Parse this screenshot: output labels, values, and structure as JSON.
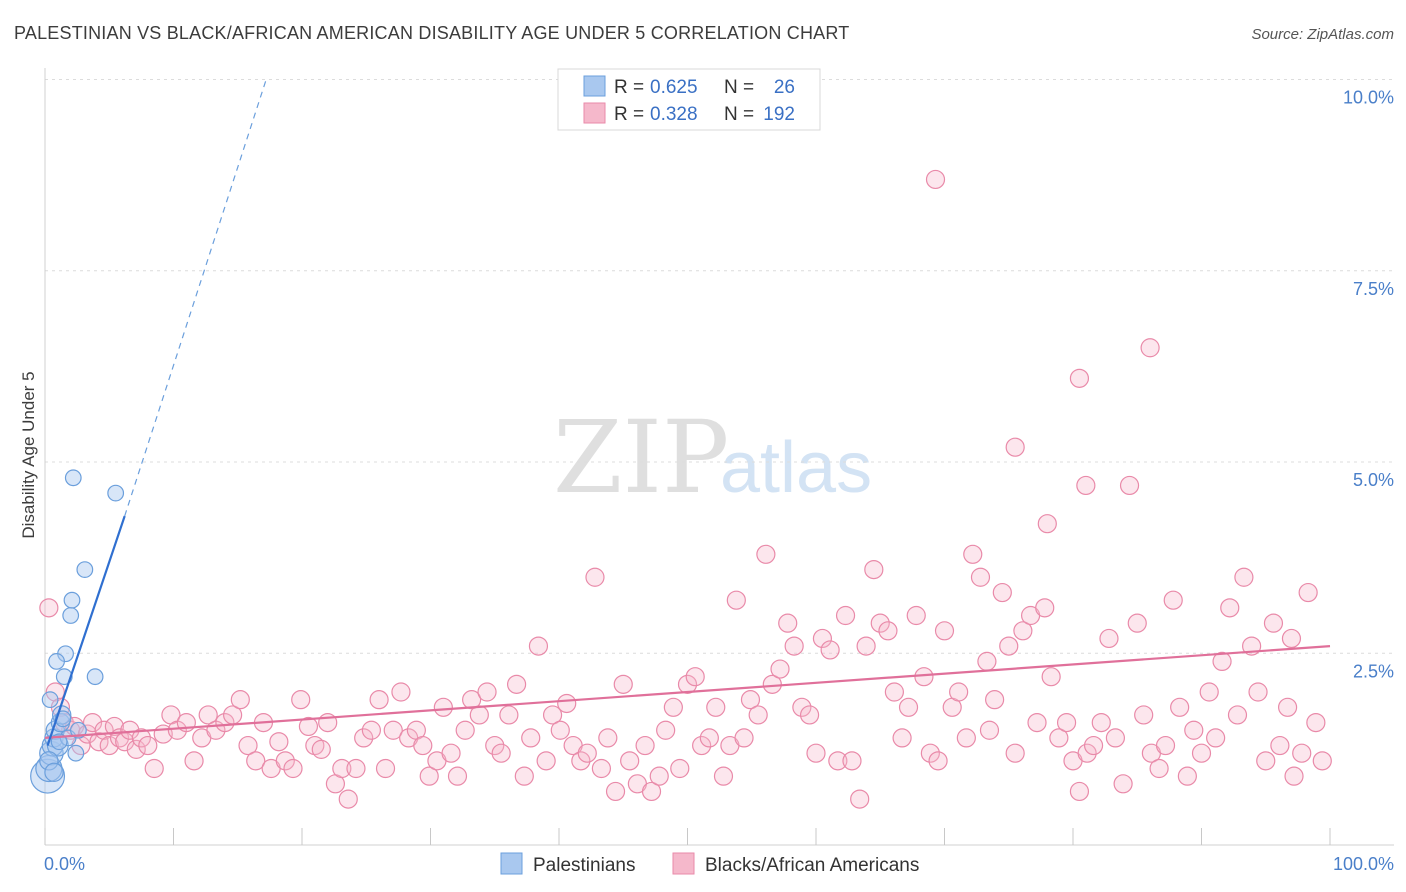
{
  "header": {
    "title": "PALESTINIAN VS BLACK/AFRICAN AMERICAN DISABILITY AGE UNDER 5 CORRELATION CHART",
    "source": "Source: ZipAtlas.com"
  },
  "watermark": {
    "zip": "ZIP",
    "atlas": "atlas"
  },
  "legend": {
    "rows": [
      {
        "r_label": "R =",
        "r_value": "0.625",
        "n_label": "N =",
        "n_value": "26",
        "color": "#a9c8ef"
      },
      {
        "r_label": "R =",
        "r_value": "0.328",
        "n_label": "N =",
        "n_value": "192",
        "color": "#f5b8cb"
      }
    ]
  },
  "bottom_legend": {
    "items": [
      {
        "label": "Palestinians",
        "color": "#a9c8ef"
      },
      {
        "label": "Blacks/African Americans",
        "color": "#f5b8cb"
      }
    ]
  },
  "colors": {
    "blue_fill": "rgba(169,200,239,0.45)",
    "blue_stroke": "#6b9fdc",
    "blue_line": "#2f6fd0",
    "pink_fill": "rgba(245,184,203,0.35)",
    "pink_stroke": "#e98aa9",
    "pink_line": "#e0709a",
    "grid": "#dcdcdc",
    "axis_label": "#4a7fc9"
  },
  "chart_data": {
    "type": "scatter",
    "title": "PALESTINIAN VS BLACK/AFRICAN AMERICAN DISABILITY AGE UNDER 5 CORRELATION CHART",
    "xlabel": "",
    "ylabel": "Disability Age Under 5",
    "xlim": [
      0,
      100
    ],
    "ylim": [
      0,
      10
    ],
    "x_tick_labels": [
      "0.0%",
      "100.0%"
    ],
    "y_ticks": [
      2.5,
      5.0,
      7.5,
      10.0
    ],
    "y_tick_labels": [
      "2.5%",
      "5.0%",
      "7.5%",
      "10.0%"
    ],
    "series": [
      {
        "name": "Palestinians",
        "R": 0.625,
        "N": 26,
        "trend": {
          "x0": 0.2,
          "y0": 1.3,
          "x1": 6.2,
          "y1": 4.3,
          "dash_x1": 17.2,
          "dash_y1": 10.0
        },
        "points": [
          [
            0.2,
            0.9
          ],
          [
            0.3,
            1.0
          ],
          [
            0.5,
            1.2
          ],
          [
            0.6,
            1.3
          ],
          [
            0.7,
            1.4
          ],
          [
            0.8,
            1.5
          ],
          [
            1.0,
            1.3
          ],
          [
            1.2,
            1.6
          ],
          [
            1.3,
            1.7
          ],
          [
            1.5,
            2.2
          ],
          [
            1.6,
            2.5
          ],
          [
            1.8,
            1.4
          ],
          [
            2.0,
            3.0
          ],
          [
            2.1,
            3.2
          ],
          [
            2.2,
            4.8
          ],
          [
            2.4,
            1.2
          ],
          [
            3.1,
            3.6
          ],
          [
            3.9,
            2.2
          ],
          [
            5.5,
            4.6
          ],
          [
            0.4,
            1.9
          ],
          [
            0.9,
            2.4
          ],
          [
            1.1,
            1.35
          ],
          [
            0.3,
            1.1
          ],
          [
            1.4,
            1.65
          ],
          [
            2.6,
            1.5
          ],
          [
            0.7,
            0.95
          ]
        ],
        "sizes": [
          26,
          20,
          18,
          16,
          14,
          14,
          16,
          14,
          14,
          12,
          12,
          12,
          12,
          12,
          12,
          12,
          12,
          12,
          12,
          12,
          12,
          12,
          14,
          12,
          12,
          14
        ]
      },
      {
        "name": "Blacks/African Americans",
        "R": 0.328,
        "N": 192,
        "trend": {
          "x0": 0.0,
          "y0": 1.4,
          "x1": 100.0,
          "y1": 2.6
        },
        "points": [
          [
            0.3,
            3.1
          ],
          [
            0.8,
            2.0
          ],
          [
            1.2,
            1.8
          ],
          [
            1.5,
            1.6
          ],
          [
            2.0,
            1.5
          ],
          [
            2.3,
            1.55
          ],
          [
            2.8,
            1.3
          ],
          [
            3.3,
            1.45
          ],
          [
            3.7,
            1.6
          ],
          [
            4.2,
            1.35
          ],
          [
            4.6,
            1.5
          ],
          [
            5.0,
            1.3
          ],
          [
            5.4,
            1.55
          ],
          [
            5.8,
            1.4
          ],
          [
            6.2,
            1.35
          ],
          [
            6.6,
            1.5
          ],
          [
            7.1,
            1.25
          ],
          [
            7.5,
            1.4
          ],
          [
            8.0,
            1.3
          ],
          [
            8.5,
            1.0
          ],
          [
            9.2,
            1.45
          ],
          [
            9.8,
            1.7
          ],
          [
            10.3,
            1.5
          ],
          [
            11.0,
            1.6
          ],
          [
            11.6,
            1.1
          ],
          [
            12.2,
            1.4
          ],
          [
            12.7,
            1.7
          ],
          [
            13.3,
            1.5
          ],
          [
            14.0,
            1.6
          ],
          [
            14.6,
            1.7
          ],
          [
            15.2,
            1.9
          ],
          [
            15.8,
            1.3
          ],
          [
            16.4,
            1.1
          ],
          [
            17.0,
            1.6
          ],
          [
            17.6,
            1.0
          ],
          [
            18.2,
            1.35
          ],
          [
            18.7,
            1.1
          ],
          [
            19.3,
            1.0
          ],
          [
            19.9,
            1.9
          ],
          [
            20.5,
            1.55
          ],
          [
            21.0,
            1.3
          ],
          [
            21.5,
            1.25
          ],
          [
            22.0,
            1.6
          ],
          [
            22.6,
            0.8
          ],
          [
            23.1,
            1.0
          ],
          [
            23.6,
            0.6
          ],
          [
            24.2,
            1.0
          ],
          [
            24.8,
            1.4
          ],
          [
            25.4,
            1.5
          ],
          [
            26.0,
            1.9
          ],
          [
            26.5,
            1.0
          ],
          [
            27.1,
            1.5
          ],
          [
            27.7,
            2.0
          ],
          [
            28.3,
            1.4
          ],
          [
            28.9,
            1.5
          ],
          [
            29.4,
            1.3
          ],
          [
            29.9,
            0.9
          ],
          [
            30.5,
            1.1
          ],
          [
            31.0,
            1.8
          ],
          [
            31.6,
            1.2
          ],
          [
            32.1,
            0.9
          ],
          [
            32.7,
            1.5
          ],
          [
            33.2,
            1.9
          ],
          [
            33.8,
            1.7
          ],
          [
            34.4,
            2.0
          ],
          [
            35.0,
            1.3
          ],
          [
            35.5,
            1.2
          ],
          [
            36.1,
            1.7
          ],
          [
            36.7,
            2.1
          ],
          [
            37.3,
            0.9
          ],
          [
            37.8,
            1.4
          ],
          [
            38.4,
            2.6
          ],
          [
            39.0,
            1.1
          ],
          [
            39.5,
            1.7
          ],
          [
            40.1,
            1.5
          ],
          [
            40.6,
            1.85
          ],
          [
            41.1,
            1.3
          ],
          [
            41.7,
            1.1
          ],
          [
            42.2,
            1.2
          ],
          [
            42.8,
            3.5
          ],
          [
            43.3,
            1.0
          ],
          [
            43.8,
            1.4
          ],
          [
            44.4,
            0.7
          ],
          [
            45.0,
            2.1
          ],
          [
            45.5,
            1.1
          ],
          [
            46.1,
            0.8
          ],
          [
            46.7,
            1.3
          ],
          [
            47.2,
            0.7
          ],
          [
            47.8,
            0.9
          ],
          [
            48.3,
            1.5
          ],
          [
            48.9,
            1.8
          ],
          [
            49.4,
            1.0
          ],
          [
            50.0,
            2.1
          ],
          [
            50.6,
            2.2
          ],
          [
            51.1,
            1.3
          ],
          [
            51.7,
            1.4
          ],
          [
            52.2,
            1.8
          ],
          [
            52.8,
            0.9
          ],
          [
            53.3,
            1.3
          ],
          [
            53.8,
            3.2
          ],
          [
            54.4,
            1.4
          ],
          [
            54.9,
            1.9
          ],
          [
            55.5,
            1.7
          ],
          [
            56.1,
            3.8
          ],
          [
            56.6,
            2.1
          ],
          [
            57.2,
            2.3
          ],
          [
            57.8,
            2.9
          ],
          [
            58.3,
            2.6
          ],
          [
            58.9,
            1.8
          ],
          [
            59.5,
            1.7
          ],
          [
            60.0,
            1.2
          ],
          [
            60.5,
            2.7
          ],
          [
            61.1,
            2.55
          ],
          [
            61.7,
            1.1
          ],
          [
            62.3,
            3.0
          ],
          [
            62.8,
            1.1
          ],
          [
            63.4,
            0.6
          ],
          [
            63.9,
            2.6
          ],
          [
            64.5,
            3.6
          ],
          [
            65.0,
            2.9
          ],
          [
            65.6,
            2.8
          ],
          [
            66.1,
            2.0
          ],
          [
            66.7,
            1.4
          ],
          [
            67.2,
            1.8
          ],
          [
            67.8,
            3.0
          ],
          [
            68.4,
            2.2
          ],
          [
            68.9,
            1.2
          ],
          [
            69.5,
            1.1
          ],
          [
            70.0,
            2.8
          ],
          [
            70.6,
            1.8
          ],
          [
            71.1,
            2.0
          ],
          [
            71.7,
            1.4
          ],
          [
            72.2,
            3.8
          ],
          [
            72.8,
            3.5
          ],
          [
            73.3,
            2.4
          ],
          [
            73.9,
            1.9
          ],
          [
            74.5,
            3.3
          ],
          [
            75.0,
            2.6
          ],
          [
            75.5,
            1.2
          ],
          [
            76.1,
            2.8
          ],
          [
            76.7,
            3.0
          ],
          [
            77.2,
            1.6
          ],
          [
            77.8,
            3.1
          ],
          [
            78.3,
            2.2
          ],
          [
            78.9,
            1.4
          ],
          [
            79.5,
            1.6
          ],
          [
            80.0,
            1.1
          ],
          [
            80.5,
            0.7
          ],
          [
            81.1,
            1.2
          ],
          [
            81.6,
            1.3
          ],
          [
            82.2,
            1.6
          ],
          [
            82.8,
            2.7
          ],
          [
            83.3,
            1.4
          ],
          [
            83.9,
            0.8
          ],
          [
            84.4,
            4.7
          ],
          [
            85.0,
            2.9
          ],
          [
            85.5,
            1.7
          ],
          [
            86.1,
            1.2
          ],
          [
            86.7,
            1.0
          ],
          [
            87.2,
            1.3
          ],
          [
            87.8,
            3.2
          ],
          [
            88.3,
            1.8
          ],
          [
            88.9,
            0.9
          ],
          [
            89.4,
            1.5
          ],
          [
            90.0,
            1.2
          ],
          [
            90.6,
            2.0
          ],
          [
            91.1,
            1.4
          ],
          [
            91.6,
            2.4
          ],
          [
            92.2,
            3.1
          ],
          [
            92.8,
            1.7
          ],
          [
            93.3,
            3.5
          ],
          [
            93.9,
            2.6
          ],
          [
            94.4,
            2.0
          ],
          [
            95.0,
            1.1
          ],
          [
            95.6,
            2.9
          ],
          [
            96.1,
            1.3
          ],
          [
            96.7,
            1.8
          ],
          [
            97.2,
            0.9
          ],
          [
            97.8,
            1.2
          ],
          [
            98.3,
            3.3
          ],
          [
            98.9,
            1.6
          ],
          [
            99.4,
            1.1
          ],
          [
            69.3,
            8.7
          ],
          [
            86.0,
            6.5
          ],
          [
            80.5,
            6.1
          ],
          [
            75.5,
            5.2
          ],
          [
            81.0,
            4.7
          ],
          [
            78.0,
            4.2
          ],
          [
            73.5,
            1.5
          ],
          [
            97.0,
            2.7
          ]
        ],
        "sizes": [
          14
        ]
      }
    ]
  }
}
